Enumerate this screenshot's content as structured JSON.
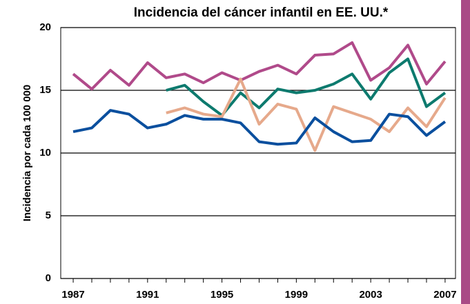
{
  "chart_data": {
    "type": "line",
    "title": "Incidencia del cáncer infantil en EE. UU.*",
    "y_label": "Incidencia por cada 100 000",
    "x": [
      1987,
      1988,
      1989,
      1990,
      1991,
      1992,
      1993,
      1994,
      1995,
      1996,
      1997,
      1998,
      1999,
      2000,
      2001,
      2002,
      2003,
      2004,
      2005,
      2006,
      2007
    ],
    "series": [
      {
        "color": "#b04a8a",
        "values": [
          16.3,
          15.1,
          16.6,
          15.4,
          17.2,
          16.0,
          16.3,
          15.6,
          16.4,
          15.8,
          16.5,
          17.0,
          16.3,
          17.8,
          17.9,
          18.8,
          15.8,
          16.8,
          18.6,
          15.5,
          17.3
        ]
      },
      {
        "color": "#0d7a6e",
        "values": [
          null,
          null,
          null,
          null,
          null,
          15.0,
          15.4,
          14.1,
          13.0,
          14.8,
          13.6,
          15.1,
          14.8,
          15.0,
          15.5,
          16.3,
          14.3,
          16.4,
          17.5,
          13.7,
          14.8
        ]
      },
      {
        "color": "#e6a98b",
        "values": [
          null,
          null,
          null,
          null,
          null,
          13.2,
          13.6,
          13.1,
          12.9,
          15.9,
          12.3,
          13.9,
          13.5,
          10.2,
          13.7,
          13.2,
          12.7,
          11.7,
          13.6,
          12.1,
          14.4
        ]
      },
      {
        "color": "#0a4f9e",
        "values": [
          11.7,
          12.0,
          13.4,
          13.1,
          12.0,
          12.3,
          13.0,
          12.7,
          12.7,
          12.4,
          10.9,
          10.7,
          10.8,
          12.8,
          11.7,
          10.9,
          11.0,
          13.1,
          12.9,
          11.4,
          12.5
        ]
      }
    ],
    "xlim": [
      1986.33,
      2007.56
    ],
    "xticks": [
      1987,
      1991,
      1995,
      1999,
      2003,
      2007
    ],
    "ylim": [
      0,
      20
    ],
    "yticks": [
      0,
      5,
      10,
      15,
      20
    ],
    "grid": true
  }
}
